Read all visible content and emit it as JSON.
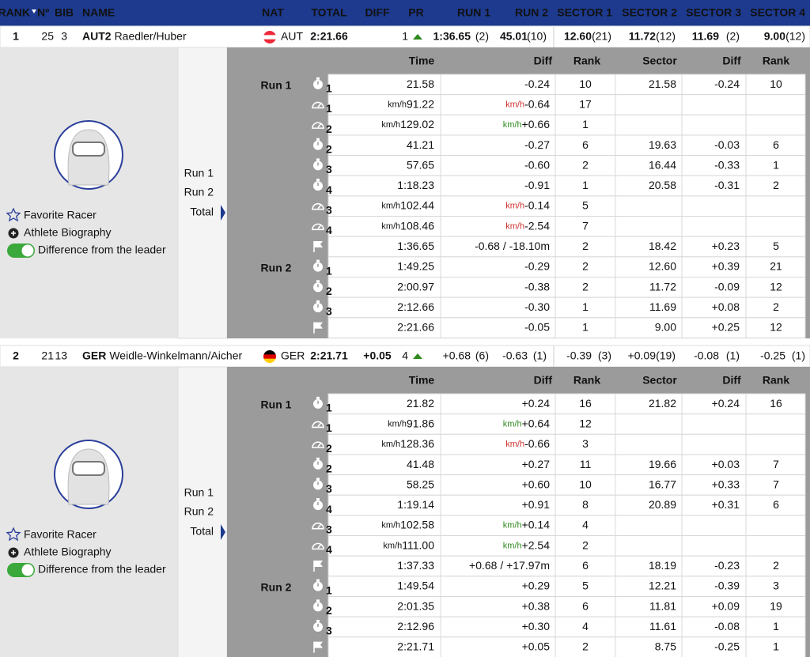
{
  "header": {
    "columns": [
      "RANK",
      "Nº",
      "BIB",
      "NAME",
      "NAT",
      "TOTAL",
      "DIFF",
      "PR",
      "RUN 1",
      "RUN 2",
      "SECTOR 1",
      "SECTOR 2",
      "SECTOR 3",
      "SECTOR 4"
    ]
  },
  "detail": {
    "columns": [
      "Time",
      "Diff",
      "Rank",
      "Sector",
      "Diff",
      "Rank"
    ],
    "runs": [
      "Run 1",
      "Run 2",
      "Total"
    ],
    "actions": [
      "Favorite Racer",
      "Athlete Biography",
      "Difference from the leader"
    ]
  },
  "athletes": [
    {
      "rank": "1",
      "number": "25",
      "bib": "3",
      "team": "AUT2",
      "name": "Raedler/Huber",
      "nat": "AUT",
      "flag_colors": [
        "#ed2939",
        "#ffffff",
        "#ed2939"
      ],
      "total": "2:21.66",
      "pr": "1",
      "run1": "1:36.65",
      "run1_rank": "(2)",
      "run2": "45.01",
      "run2_rank": "(10)",
      "sectors": [
        {
          "time": "12.60",
          "rank": "(21)"
        },
        {
          "time": "11.72",
          "rank": "(12)"
        },
        {
          "time": "11.69",
          "rank": "(2)"
        },
        {
          "time": "9.00",
          "rank": "(12)"
        }
      ],
      "rows": [
        {
          "run": "Run 1",
          "icon": "stopwatch",
          "sub": "1",
          "time": "21.58",
          "diff": "-0.24",
          "diff_color": "#2f8a1f",
          "rank": "10",
          "sector": "21.58",
          "sector_diff": "-0.24",
          "sector_diff_color": "#2f8a1f",
          "sector_rank": "10"
        },
        {
          "icon": "speed",
          "sub": "1",
          "unit": "km/h",
          "time": "91.22",
          "diff": "-0.64",
          "diff_color": "#d0312d",
          "rank": "17"
        },
        {
          "icon": "speed",
          "sub": "2",
          "unit": "km/h",
          "time": "129.02",
          "diff": "+0.66",
          "diff_color": "#2f8a1f",
          "rank": "1"
        },
        {
          "icon": "stopwatch",
          "sub": "2",
          "time": "41.21",
          "diff": "-0.27",
          "diff_color": "#2f8a1f",
          "rank": "6",
          "sector": "19.63",
          "sector_diff": "-0.03",
          "sector_diff_color": "#2f8a1f",
          "sector_rank": "6"
        },
        {
          "icon": "stopwatch",
          "sub": "3",
          "time": "57.65",
          "diff": "-0.60",
          "diff_color": "#2f8a1f",
          "rank": "2",
          "sector": "16.44",
          "sector_diff": "-0.33",
          "sector_diff_color": "#2f8a1f",
          "sector_rank": "1"
        },
        {
          "icon": "stopwatch",
          "sub": "4",
          "time": "1:18.23",
          "diff": "-0.91",
          "diff_color": "#2f8a1f",
          "rank": "1",
          "sector": "20.58",
          "sector_diff": "-0.31",
          "sector_diff_color": "#2f8a1f",
          "sector_rank": "2"
        },
        {
          "icon": "speed",
          "sub": "3",
          "unit": "km/h",
          "time": "102.44",
          "diff": "-0.14",
          "diff_color": "#d0312d",
          "rank": "5"
        },
        {
          "icon": "speed",
          "sub": "4",
          "unit": "km/h",
          "time": "108.46",
          "diff": "-2.54",
          "diff_color": "#d0312d",
          "rank": "7"
        },
        {
          "icon": "flag",
          "time": "1:36.65",
          "diff": "-0.68 / -18.10m",
          "diff_color": "#2f8a1f",
          "rank": "2",
          "sector": "18.42",
          "sector_diff": "+0.23",
          "sector_diff_color": "#d0312d",
          "sector_rank": "5"
        },
        {
          "run": "Run 2",
          "icon": "stopwatch",
          "sub": "1",
          "time": "1:49.25",
          "diff": "-0.29",
          "diff_color": "#2f8a1f",
          "rank": "2",
          "sector": "12.60",
          "sector_diff": "+0.39",
          "sector_diff_color": "#d0312d",
          "sector_rank": "21"
        },
        {
          "icon": "stopwatch",
          "sub": "2",
          "time": "2:00.97",
          "diff": "-0.38",
          "diff_color": "#2f8a1f",
          "rank": "2",
          "sector": "11.72",
          "sector_diff": "-0.09",
          "sector_diff_color": "#2f8a1f",
          "sector_rank": "12"
        },
        {
          "icon": "stopwatch",
          "sub": "3",
          "time": "2:12.66",
          "diff": "-0.30",
          "diff_color": "#2f8a1f",
          "rank": "1",
          "sector": "11.69",
          "sector_diff": "+0.08",
          "sector_diff_color": "#d0312d",
          "sector_rank": "2"
        },
        {
          "icon": "flag",
          "time": "2:21.66",
          "diff": "-0.05",
          "diff_color": "#2f8a1f",
          "rank": "1",
          "sector": "9.00",
          "sector_diff": "+0.25",
          "sector_diff_color": "#d0312d",
          "sector_rank": "12"
        }
      ]
    },
    {
      "rank": "2",
      "number": "21",
      "bib": "13",
      "team": "GER",
      "name": "Weidle-Winkelmann/Aicher",
      "nat": "GER",
      "flag_colors": [
        "#000000",
        "#dd0000",
        "#ffce00"
      ],
      "total": "2:21.71",
      "diff": "+0.05",
      "pr": "4",
      "run1": "+0.68",
      "run1_rank": "(6)",
      "run2": "-0.63",
      "run2_rank": "(1)",
      "sectors": [
        {
          "time": "-0.39",
          "rank": "(3)"
        },
        {
          "time": "+0.09",
          "rank": "(19)"
        },
        {
          "time": "-0.08",
          "rank": "(1)"
        },
        {
          "time": "-0.25",
          "rank": "(1)"
        }
      ],
      "rows": [
        {
          "run": "Run 1",
          "icon": "stopwatch",
          "sub": "1",
          "time": "21.82",
          "diff": "+0.24",
          "diff_color": "#d0312d",
          "rank": "16",
          "sector": "21.82",
          "sector_diff": "+0.24",
          "sector_diff_color": "#d0312d",
          "sector_rank": "16"
        },
        {
          "icon": "speed",
          "sub": "1",
          "unit": "km/h",
          "time": "91.86",
          "diff": "+0.64",
          "diff_color": "#2f8a1f",
          "rank": "12"
        },
        {
          "icon": "speed",
          "sub": "2",
          "unit": "km/h",
          "time": "128.36",
          "diff": "-0.66",
          "diff_color": "#d0312d",
          "rank": "3"
        },
        {
          "icon": "stopwatch",
          "sub": "2",
          "time": "41.48",
          "diff": "+0.27",
          "diff_color": "#d0312d",
          "rank": "11",
          "sector": "19.66",
          "sector_diff": "+0.03",
          "sector_diff_color": "#d0312d",
          "sector_rank": "7"
        },
        {
          "icon": "stopwatch",
          "sub": "3",
          "time": "58.25",
          "diff": "+0.60",
          "diff_color": "#d0312d",
          "rank": "10",
          "sector": "16.77",
          "sector_diff": "+0.33",
          "sector_diff_color": "#d0312d",
          "sector_rank": "7"
        },
        {
          "icon": "stopwatch",
          "sub": "4",
          "time": "1:19.14",
          "diff": "+0.91",
          "diff_color": "#d0312d",
          "rank": "8",
          "sector": "20.89",
          "sector_diff": "+0.31",
          "sector_diff_color": "#d0312d",
          "sector_rank": "6"
        },
        {
          "icon": "speed",
          "sub": "3",
          "unit": "km/h",
          "time": "102.58",
          "diff": "+0.14",
          "diff_color": "#2f8a1f",
          "rank": "4"
        },
        {
          "icon": "speed",
          "sub": "4",
          "unit": "km/h",
          "time": "111.00",
          "diff": "+2.54",
          "diff_color": "#2f8a1f",
          "rank": "2"
        },
        {
          "icon": "flag",
          "time": "1:37.33",
          "diff": "+0.68 / +17.97m",
          "diff_color": "#d0312d",
          "rank": "6",
          "sector": "18.19",
          "sector_diff": "-0.23",
          "sector_diff_color": "#2f8a1f",
          "sector_rank": "2"
        },
        {
          "run": "Run 2",
          "icon": "stopwatch",
          "sub": "1",
          "time": "1:49.54",
          "diff": "+0.29",
          "diff_color": "#d0312d",
          "rank": "5",
          "sector": "12.21",
          "sector_diff": "-0.39",
          "sector_diff_color": "#2f8a1f",
          "sector_rank": "3"
        },
        {
          "icon": "stopwatch",
          "sub": "2",
          "time": "2:01.35",
          "diff": "+0.38",
          "diff_color": "#d0312d",
          "rank": "6",
          "sector": "11.81",
          "sector_diff": "+0.09",
          "sector_diff_color": "#d0312d",
          "sector_rank": "19"
        },
        {
          "icon": "stopwatch",
          "sub": "3",
          "time": "2:12.96",
          "diff": "+0.30",
          "diff_color": "#d0312d",
          "rank": "4",
          "sector": "11.61",
          "sector_diff": "-0.08",
          "sector_diff_color": "#2f8a1f",
          "sector_rank": "1"
        },
        {
          "icon": "flag",
          "time": "2:21.71",
          "diff": "+0.05",
          "diff_color": "#d0312d",
          "rank": "2",
          "sector": "8.75",
          "sector_diff": "-0.25",
          "sector_diff_color": "#2f8a1f",
          "sector_rank": "1"
        }
      ]
    }
  ]
}
